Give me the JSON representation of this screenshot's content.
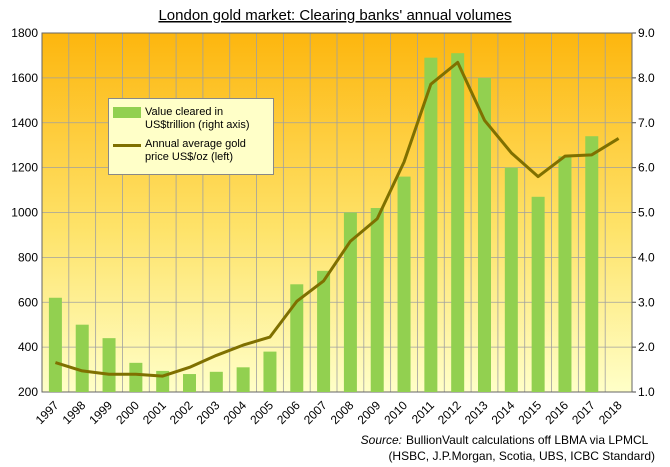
{
  "chart_data": {
    "type": "bar-line",
    "title": "London gold market: Clearing banks' annual volumes",
    "categories": [
      "1997",
      "1998",
      "1999",
      "2000",
      "2001",
      "2002",
      "2003",
      "2004",
      "2005",
      "2006",
      "2007",
      "2008",
      "2009",
      "2010",
      "2011",
      "2012",
      "2013",
      "2014",
      "2015",
      "2016",
      "2017",
      "2018"
    ],
    "series": [
      {
        "name": "Value cleared in US$trillion (right axis)",
        "type": "bar",
        "axis": "y2",
        "color": "#92d050",
        "values": [
          3.1,
          2.5,
          2.2,
          1.65,
          1.47,
          1.4,
          1.45,
          1.55,
          1.9,
          3.4,
          3.7,
          5.0,
          5.1,
          5.8,
          8.45,
          8.55,
          8.0,
          6.0,
          5.35,
          6.25,
          6.7,
          null
        ]
      },
      {
        "name": "Annual average gold price US$/oz (left)",
        "type": "line",
        "color": "#7f7000",
        "values": [
          331,
          294,
          279,
          279,
          271,
          310,
          363,
          409,
          445,
          604,
          695,
          872,
          972,
          1225,
          1572,
          1669,
          1411,
          1266,
          1160,
          1251,
          1257,
          1330
        ]
      }
    ],
    "ylim": [
      200,
      1800
    ],
    "yticks": [
      200,
      400,
      600,
      800,
      1000,
      1200,
      1400,
      1600,
      1800
    ],
    "y2lim": [
      1,
      9
    ],
    "y2ticks": [
      {
        "value": 1,
        "label": "1.0"
      },
      {
        "value": 2,
        "label": "2.0"
      },
      {
        "value": 3,
        "label": "3.0"
      },
      {
        "value": 4,
        "label": "4.0"
      },
      {
        "value": 5,
        "label": "5.0"
      },
      {
        "value": 6,
        "label": "6.0"
      },
      {
        "value": 7,
        "label": "7.0"
      },
      {
        "value": 8,
        "label": "8.0"
      },
      {
        "value": 9,
        "label": "9.0"
      }
    ],
    "grid": true,
    "source_prefix": "Source:",
    "source_text": "BullionVault calculations off LBMA via LPMCL",
    "source_text2": "(HSBC, J.P.Morgan, Scotia, UBS, ICBC Standard)"
  }
}
